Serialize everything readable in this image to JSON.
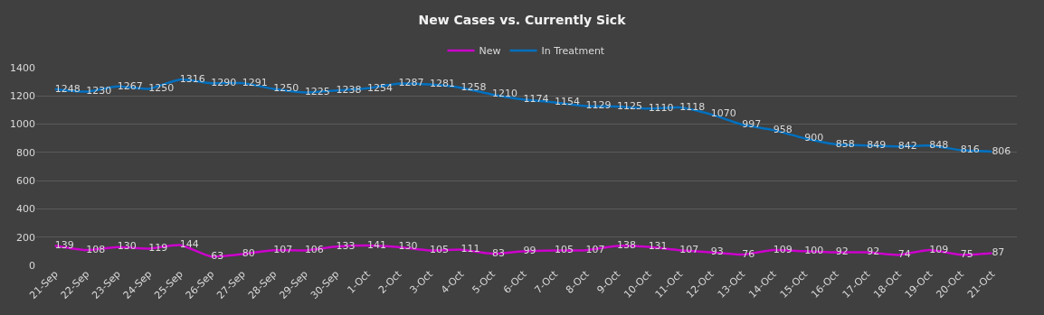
{
  "chart_data": {
    "type": "line",
    "title": "New Cases vs. Currently Sick",
    "categories": [
      "21-Sep",
      "22-Sep",
      "23-Sep",
      "24-Sep",
      "25-Sep",
      "26-Sep",
      "27-Sep",
      "28-Sep",
      "29-Sep",
      "30-Sep",
      "1-Oct",
      "2-Oct",
      "3-Oct",
      "4-Oct",
      "5-Oct",
      "6-Oct",
      "7-Oct",
      "8-Oct",
      "9-Oct",
      "10-Oct",
      "11-Oct",
      "12-Oct",
      "13-Oct",
      "14-Oct",
      "15-Oct",
      "16-Oct",
      "17-Oct",
      "18-Oct",
      "19-Oct",
      "20-Oct",
      "21-Oct"
    ],
    "series": [
      {
        "name": "New",
        "color": "#cc00cc",
        "values": [
          139,
          108,
          130,
          119,
          144,
          63,
          80,
          107,
          106,
          133,
          141,
          130,
          105,
          111,
          83,
          99,
          105,
          107,
          138,
          131,
          107,
          93,
          76,
          109,
          100,
          92,
          92,
          74,
          109,
          75,
          87
        ]
      },
      {
        "name": "In Treatment",
        "color": "#0070c0",
        "values": [
          1248,
          1230,
          1267,
          1250,
          1316,
          1290,
          1291,
          1250,
          1225,
          1238,
          1254,
          1287,
          1281,
          1258,
          1210,
          1174,
          1154,
          1129,
          1125,
          1110,
          1118,
          1070,
          997,
          958,
          900,
          858,
          849,
          842,
          848,
          816,
          806
        ]
      }
    ],
    "ylim": [
      0,
      1400
    ],
    "yticks": [
      0,
      200,
      400,
      600,
      800,
      1000,
      1200,
      1400
    ],
    "grid": "y",
    "legend": "top",
    "data_labels": true,
    "marker": "none",
    "line_style": "solid"
  }
}
